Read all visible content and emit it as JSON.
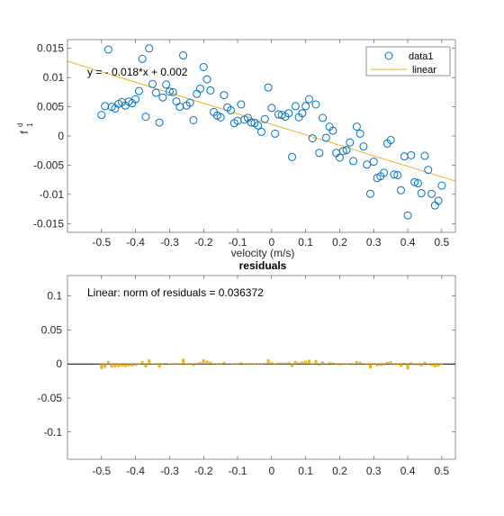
{
  "colors": {
    "marker": "#0072BD",
    "fit_line": "#EDB120",
    "residual_bar": "#EDB120",
    "axis": "#262626",
    "zero_line": "#000000"
  },
  "chart_data": [
    {
      "type": "scatter",
      "title": "",
      "xlabel": "velocity (m/s)",
      "ylabel": "f",
      "ylabel_superscript": "d",
      "ylabel_subscript": "1",
      "xlim": [
        -0.6,
        0.54
      ],
      "ylim": [
        -0.0165,
        0.0165
      ],
      "xticks": [
        -0.5,
        -0.4,
        -0.3,
        -0.2,
        -0.1,
        0,
        0.1,
        0.2,
        0.3,
        0.4,
        0.5
      ],
      "xtick_labels": [
        "-0.5",
        "-0.4",
        "-0.3",
        "-0.2",
        "-0.1",
        "0",
        "0.1",
        "0.2",
        "0.3",
        "0.4",
        "0.5"
      ],
      "yticks": [
        -0.015,
        -0.01,
        -0.005,
        0,
        0.005,
        0.01,
        0.015
      ],
      "ytick_labels": [
        "-0.015",
        "-0.01",
        "-0.005",
        "0",
        "0.005",
        "0.01",
        "0.015"
      ],
      "annotation": "y = - 0.018*x + 0.002",
      "legend": {
        "position": "top-right",
        "entries": [
          "data1",
          "linear"
        ]
      },
      "fit": {
        "slope": -0.018,
        "intercept": 0.002
      },
      "series": [
        {
          "name": "data1",
          "x": [
            -0.5,
            -0.49,
            -0.48,
            -0.47,
            -0.46,
            -0.45,
            -0.44,
            -0.43,
            -0.42,
            -0.41,
            -0.4,
            -0.39,
            -0.38,
            -0.37,
            -0.36,
            -0.35,
            -0.34,
            -0.33,
            -0.32,
            -0.31,
            -0.3,
            -0.29,
            -0.28,
            -0.27,
            -0.26,
            -0.25,
            -0.24,
            -0.23,
            -0.22,
            -0.21,
            -0.2,
            -0.19,
            -0.18,
            -0.17,
            -0.16,
            -0.15,
            -0.14,
            -0.13,
            -0.12,
            -0.11,
            -0.1,
            -0.09,
            -0.08,
            -0.07,
            -0.06,
            -0.05,
            -0.04,
            -0.03,
            -0.02,
            -0.01,
            0,
            0.01,
            0.02,
            0.03,
            0.04,
            0.05,
            0.06,
            0.07,
            0.08,
            0.09,
            0.1,
            0.11,
            0.12,
            0.13,
            0.14,
            0.15,
            0.16,
            0.17,
            0.18,
            0.19,
            0.2,
            0.21,
            0.22,
            0.23,
            0.24,
            0.25,
            0.26,
            0.27,
            0.28,
            0.29,
            0.3,
            0.31,
            0.32,
            0.33,
            0.34,
            0.35,
            0.36,
            0.37,
            0.38,
            0.39,
            0.4,
            0.41,
            0.42,
            0.43,
            0.44,
            0.45,
            0.46,
            0.47,
            0.48,
            0.49,
            0.5
          ],
          "y": [
            0.0036,
            0.0051,
            0.0148,
            0.005,
            0.0047,
            0.0055,
            0.0058,
            0.0052,
            0.0059,
            0.0056,
            0.0063,
            0.0077,
            0.0132,
            0.0033,
            0.015,
            0.0089,
            0.0074,
            0.0023,
            0.0066,
            0.0088,
            0.0076,
            0.0075,
            0.0059,
            0.005,
            0.0138,
            0.0052,
            0.0057,
            0.0027,
            0.0072,
            0.0081,
            0.0118,
            0.0097,
            0.0078,
            0.0041,
            0.0035,
            0.0032,
            0.007,
            0.0049,
            0.0044,
            0.0022,
            0.0026,
            0.0054,
            0.0028,
            0.0031,
            0.0023,
            0.0022,
            0.0018,
            0.0007,
            0.0029,
            0.0083,
            0.0048,
            0.0004,
            0.0037,
            0.0036,
            0.0033,
            0.0039,
            -0.0036,
            0.0051,
            0.0032,
            0.0039,
            0.0051,
            0.0063,
            -0.0004,
            0.0054,
            -0.0029,
            0.0031,
            -0.0003,
            0.0016,
            0.0009,
            -0.0029,
            -0.0037,
            -0.0026,
            -0.0024,
            -0.0011,
            -0.0043,
            0.0016,
            0.0004,
            -0.0018,
            -0.0049,
            -0.0099,
            -0.0044,
            -0.0072,
            -0.0069,
            -0.0063,
            -0.0013,
            -0.0007,
            -0.0066,
            -0.0067,
            -0.0093,
            -0.0035,
            -0.0136,
            -0.0033,
            -0.0079,
            -0.0081,
            -0.0098,
            -0.0034,
            -0.0058,
            -0.0099,
            -0.0119,
            -0.0111,
            -0.0085
          ]
        },
        {
          "name": "linear",
          "x": [
            -0.6,
            0.54
          ],
          "y": [
            0.0128,
            -0.00772
          ]
        }
      ]
    },
    {
      "type": "bar",
      "title": "residuals",
      "xlabel": "",
      "ylabel": "",
      "xlim": [
        -0.6,
        0.54
      ],
      "ylim": [
        -0.14,
        0.13
      ],
      "xticks": [
        -0.5,
        -0.4,
        -0.3,
        -0.2,
        -0.1,
        0,
        0.1,
        0.2,
        0.3,
        0.4,
        0.5
      ],
      "xtick_labels": [
        "-0.5",
        "-0.4",
        "-0.3",
        "-0.2",
        "-0.1",
        "0",
        "0.1",
        "0.2",
        "0.3",
        "0.4",
        "0.5"
      ],
      "yticks": [
        -0.1,
        -0.05,
        0,
        0.05,
        0.1
      ],
      "ytick_labels": [
        "-0.1",
        "-0.05",
        "0",
        "0.05",
        "0.1"
      ],
      "annotation": "Linear: norm of residuals = 0.036372",
      "x": [
        -0.5,
        -0.49,
        -0.48,
        -0.47,
        -0.46,
        -0.45,
        -0.44,
        -0.43,
        -0.42,
        -0.41,
        -0.4,
        -0.39,
        -0.38,
        -0.37,
        -0.36,
        -0.35,
        -0.34,
        -0.33,
        -0.32,
        -0.31,
        -0.3,
        -0.29,
        -0.28,
        -0.27,
        -0.26,
        -0.25,
        -0.24,
        -0.23,
        -0.22,
        -0.21,
        -0.2,
        -0.19,
        -0.18,
        -0.17,
        -0.16,
        -0.15,
        -0.14,
        -0.13,
        -0.12,
        -0.11,
        -0.1,
        -0.09,
        -0.08,
        -0.07,
        -0.06,
        -0.05,
        -0.04,
        -0.03,
        -0.02,
        -0.01,
        0,
        0.01,
        0.02,
        0.03,
        0.04,
        0.05,
        0.06,
        0.07,
        0.08,
        0.09,
        0.1,
        0.11,
        0.12,
        0.13,
        0.14,
        0.15,
        0.16,
        0.17,
        0.18,
        0.19,
        0.2,
        0.21,
        0.22,
        0.23,
        0.24,
        0.25,
        0.26,
        0.27,
        0.28,
        0.29,
        0.3,
        0.31,
        0.32,
        0.33,
        0.34,
        0.35,
        0.36,
        0.37,
        0.38,
        0.39,
        0.4,
        0.41,
        0.42,
        0.43,
        0.44,
        0.45,
        0.46,
        0.47,
        0.48,
        0.49,
        0.5
      ],
      "values": [
        -0.0074,
        -0.0057,
        0.0043,
        -0.0053,
        -0.0054,
        -0.0044,
        -0.0039,
        -0.0043,
        -0.0034,
        -0.0035,
        -0.0026,
        -0.0011,
        0.0046,
        -0.0051,
        0.0068,
        0.0009,
        -0.0004,
        -0.0053,
        -0.0008,
        0.0016,
        0.0006,
        0.0007,
        -0.0007,
        -0.0014,
        0.0076,
        -0.0008,
        -0.0002,
        -0.0029,
        0.0018,
        0.0029,
        0.0068,
        0.0049,
        0.0032,
        -0.0003,
        -0.0008,
        -0.0009,
        0.0031,
        0.0012,
        0.0009,
        -0.0011,
        -0.0005,
        0.0025,
        0.0001,
        0.0006,
        0,
        0.0001,
        -0.0001,
        -0.001,
        0.0014,
        0.007,
        0.0028,
        -0.0014,
        0.0021,
        0.0021,
        0.002,
        0.0028,
        -0.0045,
        0.0044,
        0.0027,
        0.0036,
        0.0049,
        0.0063,
        -0.0002,
        0.0058,
        -0.0023,
        0.0039,
        0.0007,
        0.0028,
        0.0023,
        -0.0013,
        -0.0019,
        -0.0006,
        -0.0002,
        0.0013,
        -0.0017,
        0.0044,
        0.0034,
        0.0014,
        -0.0015,
        -0.0064,
        -0.0007,
        -0.0033,
        -0.0028,
        -0.002,
        0.0032,
        0.004,
        -0.0017,
        -0.0016,
        -0.0041,
        0.0019,
        -0.008,
        0.0025,
        -0.0019,
        -0.0019,
        -0.0034,
        0.0032,
        0.001,
        -0.0029,
        -0.0047,
        -0.0037,
        -0.0009
      ]
    }
  ]
}
